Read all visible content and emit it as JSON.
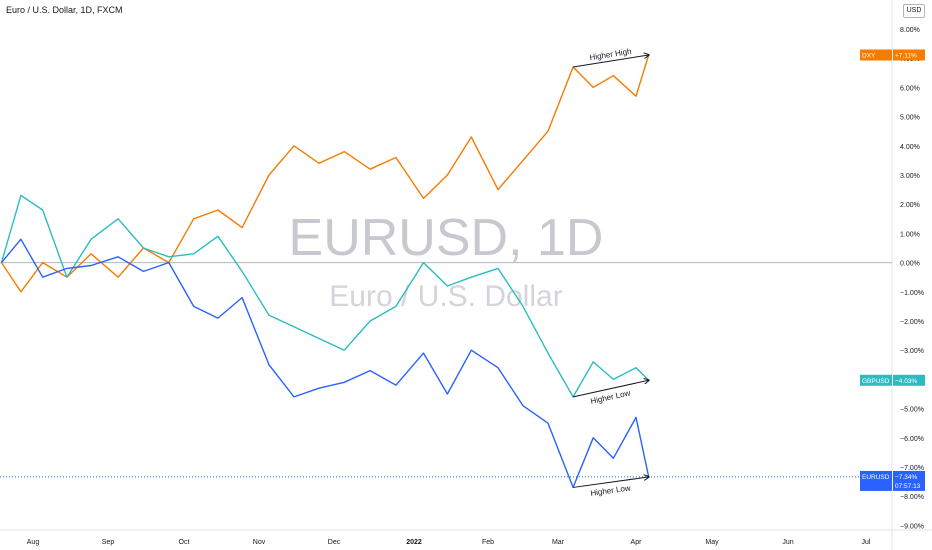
{
  "header": {
    "symbol_title": "Euro / U.S. Dollar, 1D, FXCM",
    "currency": "USD"
  },
  "watermark": {
    "main": "EURUSD, 1D",
    "sub": "Euro / U.S. Dollar"
  },
  "colors": {
    "DXY": "#f57c00",
    "GBPUSD": "#2cbcc0",
    "EURUSD": "#2962ff",
    "zero_line": "#b2b5be"
  },
  "chart_data": {
    "type": "line",
    "title": "Euro / U.S. Dollar, 1D, FXCM",
    "ylabel": "",
    "xlabel": "",
    "ylim": [
      -9.5,
      9
    ],
    "y_ticks": [
      "8.00%",
      "7.00%",
      "6.00%",
      "5.00%",
      "4.00%",
      "3.00%",
      "2.00%",
      "1.00%",
      "0.00%",
      "−1.00%",
      "−2.00%",
      "−3.00%",
      "−4.00%",
      "−5.00%",
      "−6.00%",
      "−7.00%",
      "−8.00%",
      "−9.00%"
    ],
    "y_tick_values": [
      8,
      7,
      6,
      5,
      4,
      3,
      2,
      1,
      0,
      -1,
      -2,
      -3,
      -4,
      -5,
      -6,
      -7,
      -8,
      -9
    ],
    "x_ticks": [
      "Aug",
      "Sep",
      "Oct",
      "Nov",
      "Dec",
      "2022",
      "Feb",
      "Mar",
      "Apr",
      "May",
      "Jun",
      "Jul"
    ],
    "x": [
      "2021-07-19",
      "2021-07-27",
      "2021-08-05",
      "2021-08-15",
      "2021-08-25",
      "2021-09-05",
      "2021-09-15",
      "2021-09-25",
      "2021-10-05",
      "2021-10-15",
      "2021-10-25",
      "2021-11-05",
      "2021-11-15",
      "2021-11-25",
      "2021-12-05",
      "2021-12-15",
      "2021-12-25",
      "2022-01-05",
      "2022-01-15",
      "2022-01-25",
      "2022-02-05",
      "2022-02-15",
      "2022-02-25",
      "2022-03-07",
      "2022-03-15",
      "2022-03-23",
      "2022-04-01",
      "2022-04-06"
    ],
    "series": [
      {
        "name": "DXY",
        "last_label": "+7.11%",
        "values": [
          0,
          -1,
          0,
          -0.5,
          0.3,
          -0.5,
          0.5,
          0,
          1.5,
          1.8,
          1.2,
          3,
          4,
          3.4,
          3.8,
          3.2,
          3.6,
          2.2,
          3,
          4.3,
          2.5,
          3.5,
          4.5,
          6.7,
          6,
          6.4,
          5.7,
          7.11
        ]
      },
      {
        "name": "GBPUSD",
        "last_label": "−4.03%",
        "values": [
          0,
          2.3,
          1.8,
          -0.5,
          0.8,
          1.5,
          0.5,
          0.2,
          0.3,
          0.9,
          -0.3,
          -1.8,
          -2.2,
          -2.6,
          -3,
          -2,
          -1.5,
          0,
          -0.8,
          -0.5,
          -0.2,
          -1.5,
          -3.1,
          -4.6,
          -3.4,
          -4,
          -3.6,
          -4.03
        ]
      },
      {
        "name": "EURUSD",
        "last_label": "−7.34%",
        "countdown": "07:57:13",
        "values": [
          0,
          0.8,
          -0.5,
          -0.2,
          -0.1,
          0.2,
          -0.3,
          0,
          -1.5,
          -1.9,
          -1.2,
          -3.5,
          -4.6,
          -4.3,
          -4.1,
          -3.7,
          -4.2,
          -3.1,
          -4.5,
          -3,
          -3.6,
          -4.9,
          -5.5,
          -7.7,
          -6,
          -6.7,
          -5.3,
          -7.34
        ]
      }
    ],
    "annotations": [
      {
        "text": "Higher High",
        "series": "DXY"
      },
      {
        "text": "Higher Low",
        "series": "GBPUSD"
      },
      {
        "text": "Higher Low",
        "series": "EURUSD"
      }
    ],
    "grid": false,
    "legend": "right-axis-labels"
  }
}
